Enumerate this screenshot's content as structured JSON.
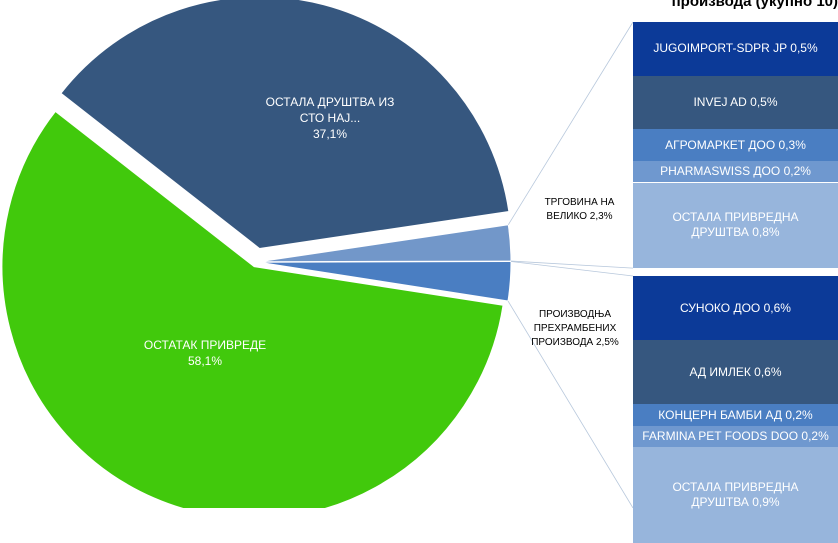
{
  "chart_data": [
    {
      "type": "pie",
      "categories": [
        "ОСТАЛА ДРУШТВА ИЗ СТО НАЈ...",
        "ТРГОВИНА НА ВЕЛИКО",
        "ПРОИЗВОДЊА ПРЕХРАМБЕНИХ ПРОИЗВОДА",
        "ОСТАТАК ПРИВРЕДЕ"
      ],
      "values": [
        37.1,
        2.3,
        2.5,
        58.1
      ],
      "value_labels": [
        "37,1%",
        "2,3%",
        "2,5%",
        "58,1%"
      ],
      "colors": [
        "#36577f",
        "#7297c9",
        "#4a7ec2",
        "#41c90c"
      ]
    },
    {
      "type": "bar",
      "title": "производа (укупно 10)",
      "categories": [
        "JUGOIMPORT-SDPR JP",
        "INVEJ AD",
        "АГРОМАРКЕТ ДОО",
        "PHARMASWISS ДОО",
        "ОСТАЛА ПРИВРЕДНА ДРУШТВА"
      ],
      "values": [
        0.5,
        0.5,
        0.3,
        0.2,
        0.8
      ],
      "value_labels": [
        "0,5%",
        "0,5%",
        "0,3%",
        "0,2%",
        "0,8%"
      ],
      "colors": [
        "#0c3a98",
        "#36577f",
        "#4a7ec2",
        "#6f98cf",
        "#97b5dc"
      ]
    },
    {
      "type": "bar",
      "categories": [
        "СУНОКО ДОО",
        "АД ИМЛЕК",
        "КОНЦЕРН БАМБИ АД",
        "FARMINA PET FOODS DOO",
        "ОСТАЛА ПРИВРЕДНА ДРУШТВА"
      ],
      "values": [
        0.6,
        0.6,
        0.2,
        0.2,
        0.9
      ],
      "value_labels": [
        "0,6%",
        "0,6%",
        "0,2%",
        "0,2%",
        "0,9%"
      ],
      "colors": [
        "#0c3a98",
        "#36577f",
        "#4a7ec2",
        "#6f98cf",
        "#97b5dc"
      ]
    }
  ]
}
